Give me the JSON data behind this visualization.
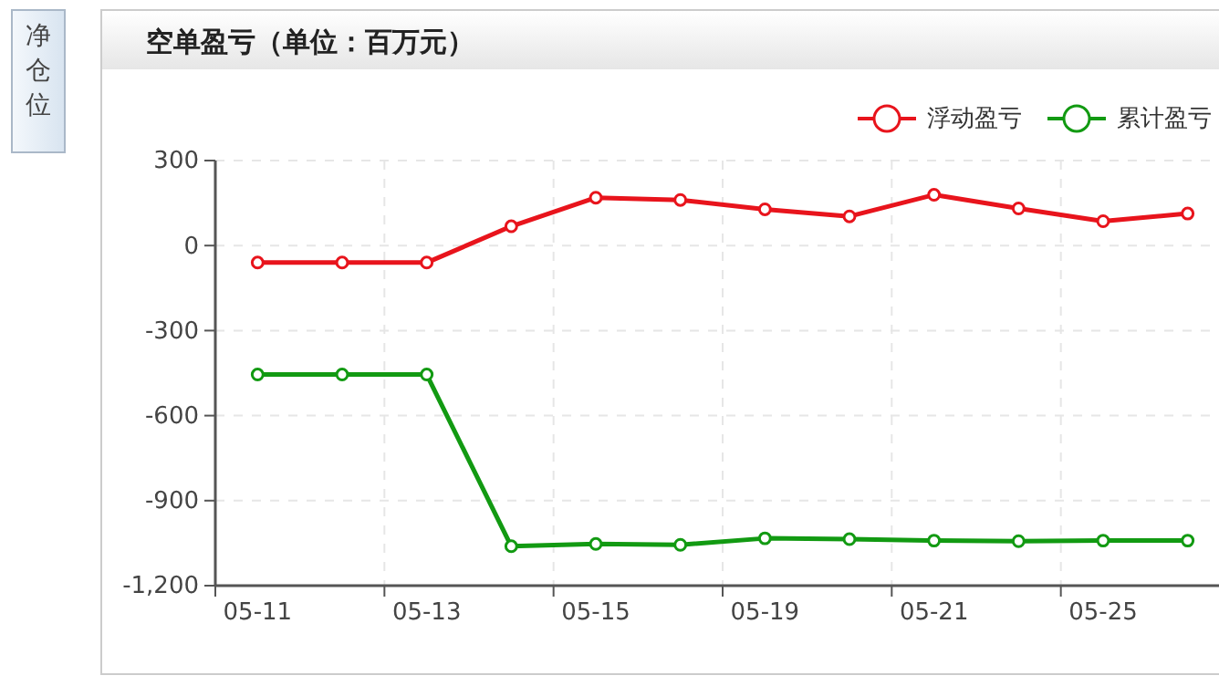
{
  "chart_data": {
    "type": "line",
    "title": "空单盈亏（单位：百万元）",
    "annotations": [
      "净仓位"
    ],
    "categories": [
      "05-11",
      null,
      "05-13",
      null,
      "05-15",
      null,
      "05-19",
      null,
      "05-21",
      null,
      "05-25",
      null
    ],
    "series": [
      {
        "name": "浮动盈亏",
        "color": "#e8141c",
        "values": [
          -60,
          -60,
          -60,
          68,
          169,
          161,
          128,
          103,
          179,
          131,
          86,
          113
        ]
      },
      {
        "name": "累计盈亏",
        "color": "#129a12",
        "values": [
          -455,
          -455,
          -455,
          -1061,
          -1053,
          -1056,
          -1033,
          -1036,
          -1041,
          -1043,
          -1041,
          -1041
        ]
      }
    ],
    "ylim": [
      -1200,
      300
    ],
    "yticks": [
      {
        "value": -1200,
        "label": "-1,200"
      },
      -900,
      -600,
      -300,
      0,
      300
    ],
    "grid": true,
    "legend": "top right",
    "marker": "circle",
    "line_style": "solid"
  }
}
